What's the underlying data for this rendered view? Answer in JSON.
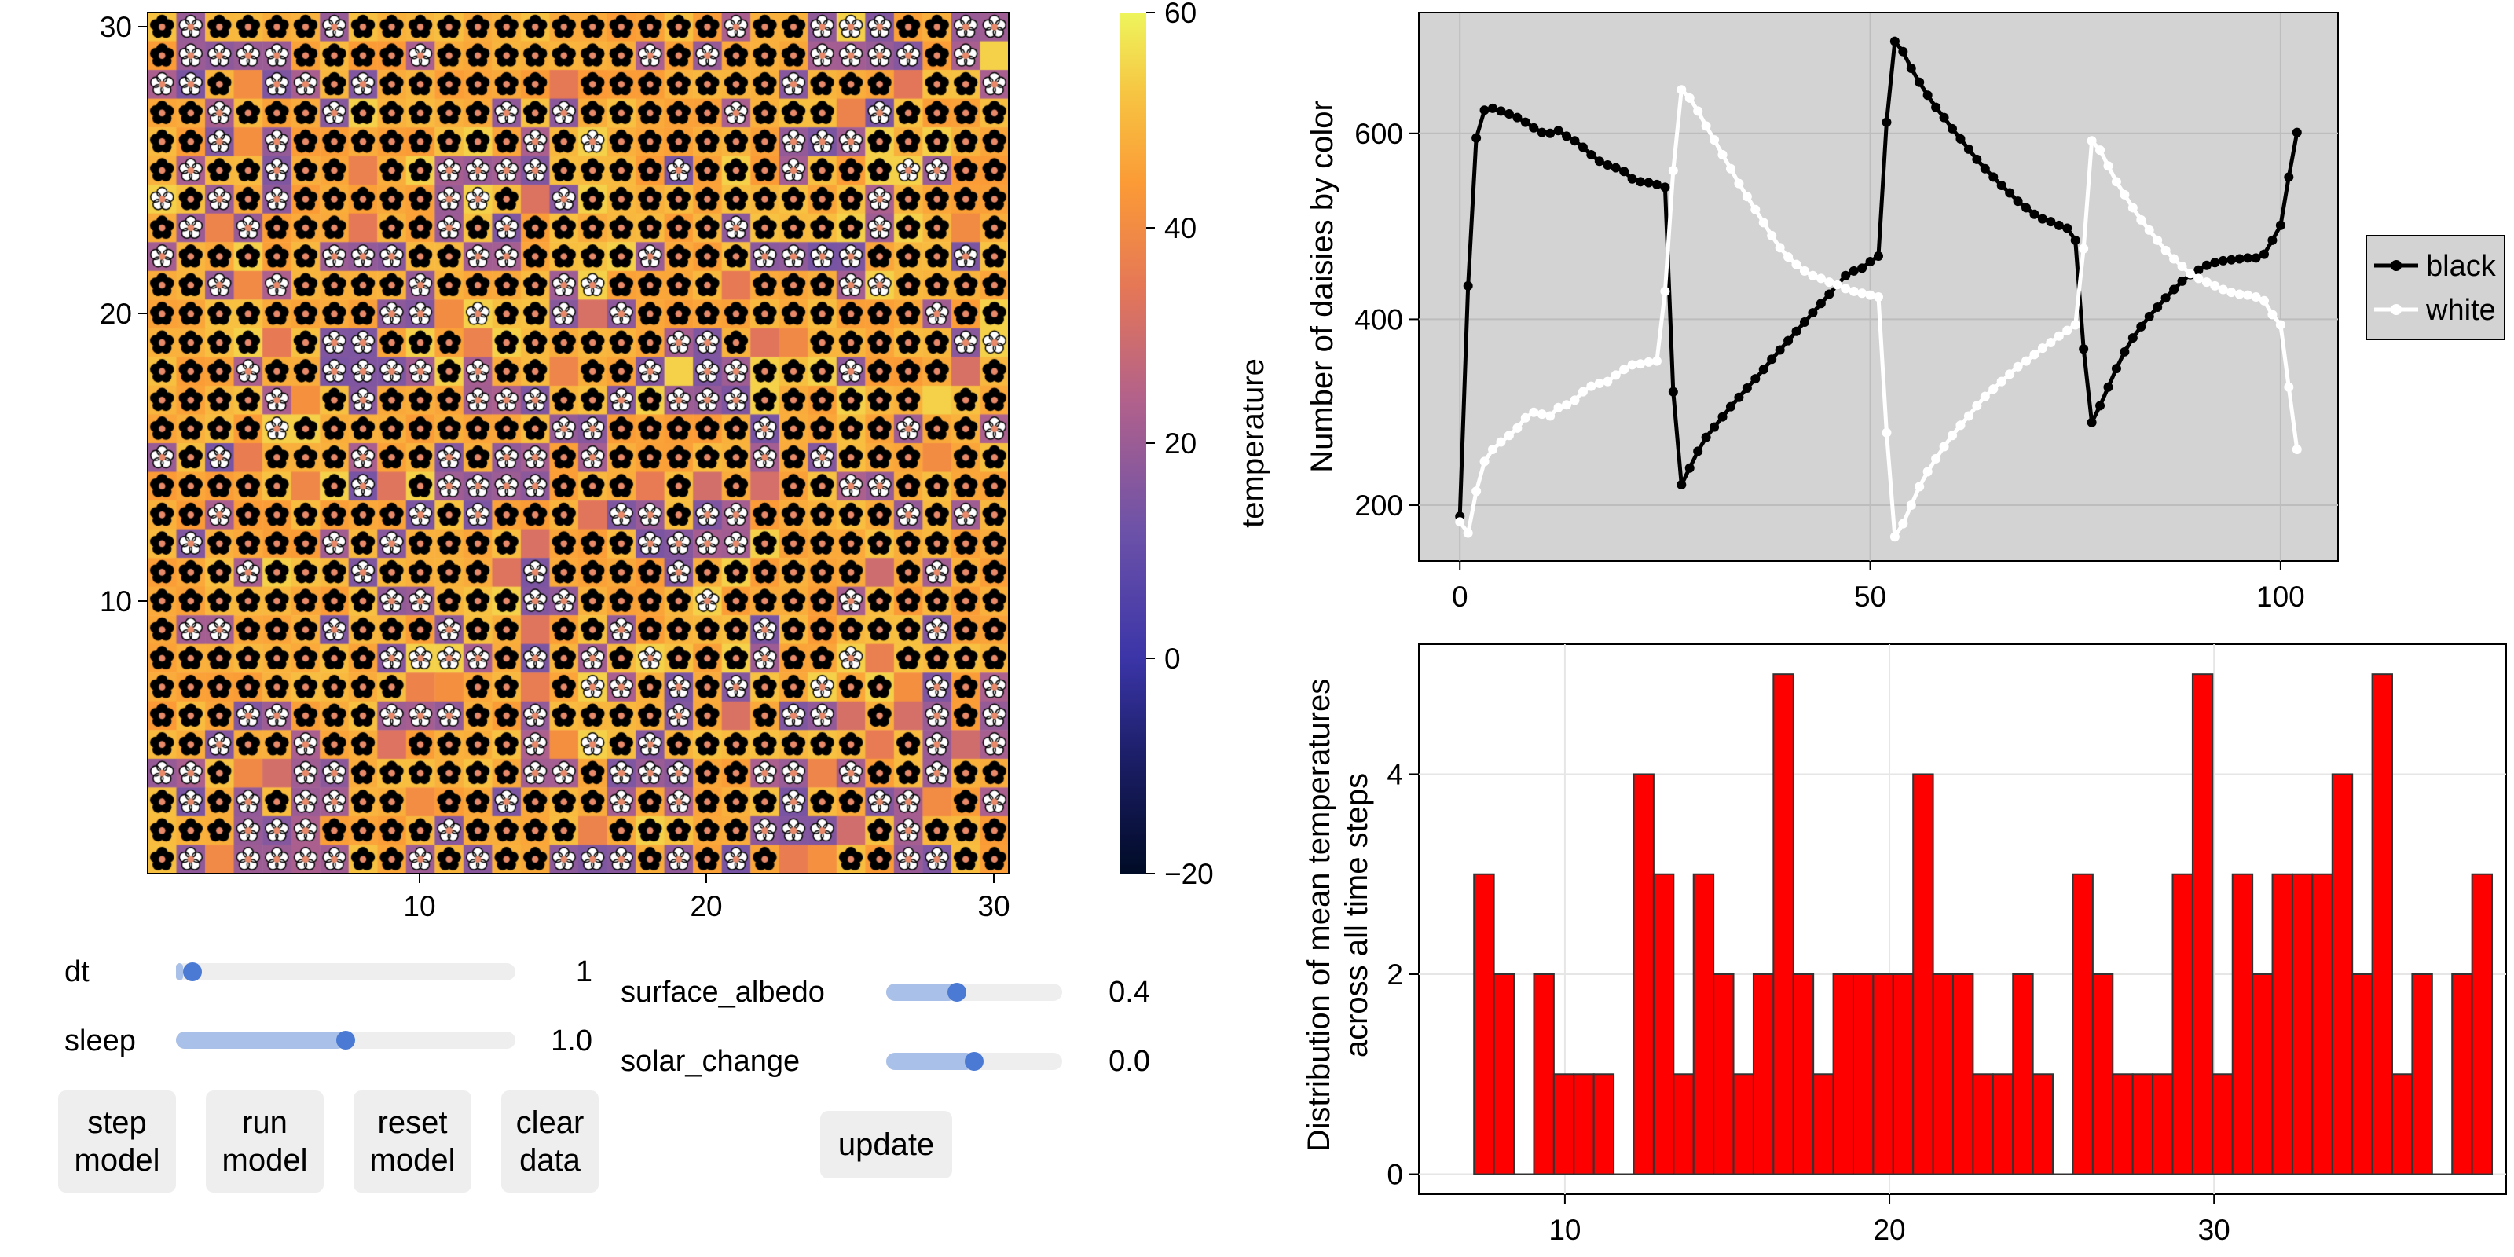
{
  "heatmap": {
    "x_ticks": [
      "10",
      "20",
      "30"
    ],
    "y_ticks": [
      "10",
      "20",
      "30"
    ],
    "colorbar_ticks": [
      "60",
      "40",
      "20",
      "0",
      "−20"
    ],
    "colorbar_label": "temperature",
    "color_min": -20,
    "color_max": 60,
    "grid_size": 30
  },
  "controls": {
    "dt": {
      "label": "dt",
      "value": "1",
      "fraction": 0.02
    },
    "sleep": {
      "label": "sleep",
      "value": "1.0",
      "fraction": 0.5
    },
    "surface_albedo": {
      "label": "surface_albedo",
      "value": "0.4",
      "fraction": 0.4
    },
    "solar_change": {
      "label": "solar_change",
      "value": "0.0",
      "fraction": 0.5
    },
    "buttons": {
      "step": [
        "step",
        "model"
      ],
      "run": [
        "run",
        "model"
      ],
      "reset": [
        "reset",
        "model"
      ],
      "clear": [
        "clear",
        "data"
      ],
      "update": "update"
    }
  },
  "chart_data": [
    {
      "type": "line",
      "title": "",
      "xlabel": "",
      "ylabel": "Number of daisies by color",
      "xlim": [
        -5,
        107
      ],
      "ylim": [
        140,
        730
      ],
      "x_ticks": [
        0,
        50,
        100
      ],
      "y_ticks": [
        200,
        400,
        600
      ],
      "legend_position": "right",
      "series": [
        {
          "name": "black",
          "color": "#000000",
          "points": [
            [
              0,
              188
            ],
            [
              1,
              436
            ],
            [
              2,
              595
            ],
            [
              3,
              625
            ],
            [
              4,
              627
            ],
            [
              5,
              624
            ],
            [
              6,
              621
            ],
            [
              7,
              617
            ],
            [
              8,
              612
            ],
            [
              9,
              606
            ],
            [
              10,
              601
            ],
            [
              11,
              600
            ],
            [
              12,
              603
            ],
            [
              13,
              597
            ],
            [
              14,
              592
            ],
            [
              15,
              585
            ],
            [
              16,
              577
            ],
            [
              17,
              570
            ],
            [
              18,
              566
            ],
            [
              19,
              563
            ],
            [
              20,
              559
            ],
            [
              21,
              551
            ],
            [
              22,
              548
            ],
            [
              23,
              547
            ],
            [
              24,
              545
            ],
            [
              25,
              542
            ],
            [
              26,
              322
            ],
            [
              27,
              222
            ],
            [
              28,
              240
            ],
            [
              29,
              258
            ],
            [
              30,
              273
            ],
            [
              31,
              284
            ],
            [
              32,
              295
            ],
            [
              33,
              306
            ],
            [
              34,
              316
            ],
            [
              35,
              326
            ],
            [
              36,
              336
            ],
            [
              37,
              346
            ],
            [
              38,
              357
            ],
            [
              39,
              367
            ],
            [
              40,
              377
            ],
            [
              41,
              387
            ],
            [
              42,
              397
            ],
            [
              43,
              407
            ],
            [
              44,
              417
            ],
            [
              45,
              427
            ],
            [
              46,
              437
            ],
            [
              47,
              447
            ],
            [
              48,
              452
            ],
            [
              49,
              455
            ],
            [
              50,
              462
            ],
            [
              51,
              468
            ],
            [
              52,
              612
            ],
            [
              53,
              699
            ],
            [
              54,
              688
            ],
            [
              55,
              670
            ],
            [
              56,
              655
            ],
            [
              57,
              641
            ],
            [
              58,
              628
            ],
            [
              59,
              617
            ],
            [
              60,
              605
            ],
            [
              61,
              594
            ],
            [
              62,
              583
            ],
            [
              63,
              572
            ],
            [
              64,
              562
            ],
            [
              65,
              553
            ],
            [
              66,
              544
            ],
            [
              67,
              536
            ],
            [
              68,
              527
            ],
            [
              69,
              520
            ],
            [
              70,
              513
            ],
            [
              71,
              508
            ],
            [
              72,
              505
            ],
            [
              73,
              501
            ],
            [
              74,
              498
            ],
            [
              75,
              485
            ],
            [
              76,
              368
            ],
            [
              77,
              289
            ],
            [
              78,
              307
            ],
            [
              79,
              327
            ],
            [
              80,
              347
            ],
            [
              81,
              365
            ],
            [
              82,
              380
            ],
            [
              83,
              392
            ],
            [
              84,
              403
            ],
            [
              85,
              413
            ],
            [
              86,
              423
            ],
            [
              87,
              432
            ],
            [
              88,
              441
            ],
            [
              89,
              448
            ],
            [
              90,
              453
            ],
            [
              91,
              458
            ],
            [
              92,
              461
            ],
            [
              93,
              463
            ],
            [
              94,
              464
            ],
            [
              95,
              465
            ],
            [
              96,
              466
            ],
            [
              97,
              466
            ],
            [
              98,
              470
            ],
            [
              99,
              485
            ],
            [
              100,
              501
            ],
            [
              101,
              553
            ],
            [
              102,
              601
            ]
          ]
        },
        {
          "name": "white",
          "color": "#ffffff",
          "points": [
            [
              0,
              182
            ],
            [
              1,
              170
            ],
            [
              2,
              215
            ],
            [
              3,
              247
            ],
            [
              4,
              260
            ],
            [
              5,
              268
            ],
            [
              6,
              275
            ],
            [
              7,
              283
            ],
            [
              8,
              294
            ],
            [
              9,
              300
            ],
            [
              10,
              298
            ],
            [
              11,
              296
            ],
            [
              12,
              305
            ],
            [
              13,
              308
            ],
            [
              14,
              313
            ],
            [
              15,
              322
            ],
            [
              16,
              328
            ],
            [
              17,
              331
            ],
            [
              18,
              333
            ],
            [
              19,
              340
            ],
            [
              20,
              346
            ],
            [
              21,
              351
            ],
            [
              22,
              352
            ],
            [
              23,
              354
            ],
            [
              24,
              355
            ],
            [
              25,
              430
            ],
            [
              26,
              560
            ],
            [
              27,
              647
            ],
            [
              28,
              638
            ],
            [
              29,
              624
            ],
            [
              30,
              608
            ],
            [
              31,
              593
            ],
            [
              32,
              577
            ],
            [
              33,
              562
            ],
            [
              34,
              546
            ],
            [
              35,
              532
            ],
            [
              36,
              518
            ],
            [
              37,
              504
            ],
            [
              38,
              490
            ],
            [
              39,
              477
            ],
            [
              40,
              467
            ],
            [
              41,
              459
            ],
            [
              42,
              452
            ],
            [
              43,
              447
            ],
            [
              44,
              444
            ],
            [
              45,
              440
            ],
            [
              46,
              437
            ],
            [
              47,
              433
            ],
            [
              48,
              430
            ],
            [
              49,
              428
            ],
            [
              50,
              426
            ],
            [
              51,
              424
            ],
            [
              52,
              278
            ],
            [
              53,
              166
            ],
            [
              54,
              180
            ],
            [
              55,
              200
            ],
            [
              56,
              220
            ],
            [
              57,
              236
            ],
            [
              58,
              250
            ],
            [
              59,
              263
            ],
            [
              60,
              275
            ],
            [
              61,
              286
            ],
            [
              62,
              296
            ],
            [
              63,
              307
            ],
            [
              64,
              317
            ],
            [
              65,
              325
            ],
            [
              66,
              333
            ],
            [
              67,
              341
            ],
            [
              68,
              349
            ],
            [
              69,
              355
            ],
            [
              70,
              362
            ],
            [
              71,
              369
            ],
            [
              72,
              375
            ],
            [
              73,
              382
            ],
            [
              74,
              388
            ],
            [
              75,
              394
            ],
            [
              76,
              476
            ],
            [
              77,
              592
            ],
            [
              78,
              582
            ],
            [
              79,
              565
            ],
            [
              80,
              548
            ],
            [
              81,
              534
            ],
            [
              82,
              520
            ],
            [
              83,
              507
            ],
            [
              84,
              496
            ],
            [
              85,
              485
            ],
            [
              86,
              474
            ],
            [
              87,
              465
            ],
            [
              88,
              457
            ],
            [
              89,
              449
            ],
            [
              90,
              444
            ],
            [
              91,
              440
            ],
            [
              92,
              436
            ],
            [
              93,
              432
            ],
            [
              94,
              429
            ],
            [
              95,
              427
            ],
            [
              96,
              426
            ],
            [
              97,
              424
            ],
            [
              98,
              420
            ],
            [
              99,
              405
            ],
            [
              100,
              394
            ],
            [
              101,
              327
            ],
            [
              102,
              260
            ]
          ]
        }
      ]
    },
    {
      "type": "bar",
      "title": "",
      "xlabel": "",
      "ylabel": "Distribution of mean temperatures across all time steps",
      "ylabel_lines": [
        "Distribution of mean temperatures",
        "across all time steps"
      ],
      "xlim": [
        5.5,
        39
      ],
      "ylim": [
        -0.2,
        5.3
      ],
      "x_ticks": [
        10,
        20,
        30
      ],
      "y_ticks": [
        0,
        2,
        4
      ],
      "bar_color": "#ff0000",
      "bin_width": 0.615,
      "bin_start": 7.2,
      "values": [
        3,
        2,
        0,
        2,
        1,
        1,
        1,
        0,
        4,
        3,
        1,
        3,
        2,
        1,
        2,
        5,
        2,
        1,
        2,
        2,
        2,
        2,
        4,
        2,
        2,
        1,
        1,
        2,
        1,
        0,
        3,
        2,
        1,
        1,
        1,
        3,
        5,
        1,
        3,
        2,
        3,
        3,
        3,
        4,
        2,
        5,
        1,
        2,
        0,
        2,
        3
      ]
    }
  ]
}
